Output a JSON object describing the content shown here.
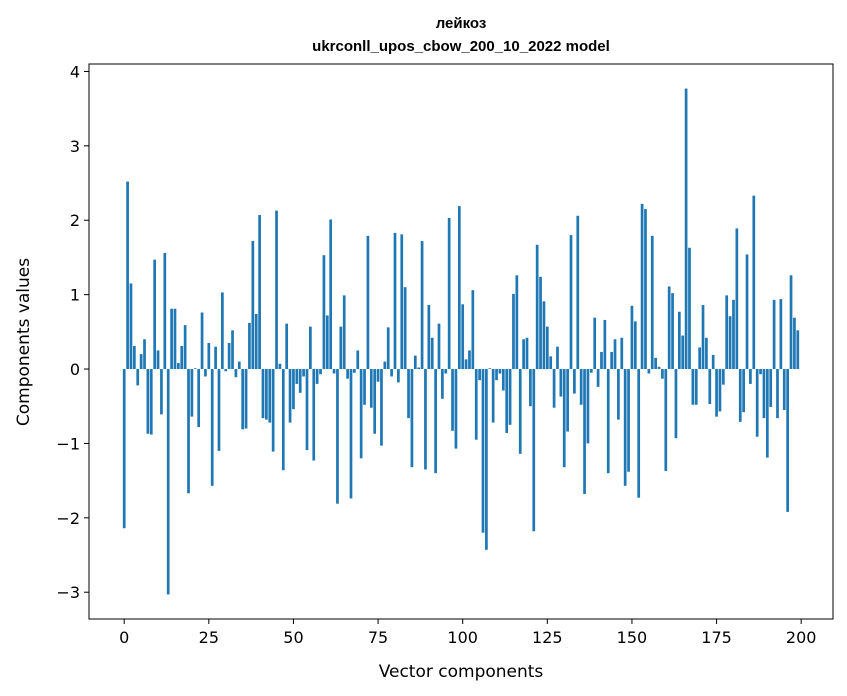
{
  "chart_data": {
    "type": "bar",
    "title": "лейкоз",
    "subtitle": "ukrconll_upos_cbow_200_10_2022 model",
    "xlabel": "Vector components",
    "ylabel": "Components values",
    "xlim": [
      -10.4,
      209.4
    ],
    "ylim": [
      -3.36,
      4.1
    ],
    "xticks": [
      0,
      25,
      50,
      75,
      100,
      125,
      150,
      175,
      200
    ],
    "xtick_labels": [
      "0",
      "25",
      "50",
      "75",
      "100",
      "125",
      "150",
      "175",
      "200"
    ],
    "yticks": [
      -3,
      -2,
      -1,
      0,
      1,
      2,
      3,
      4
    ],
    "ytick_labels": [
      "−3",
      "−2",
      "−1",
      "0",
      "1",
      "2",
      "3",
      "4"
    ],
    "grid": false,
    "bar_color": "#1f77b4",
    "values": [
      -2.14,
      2.52,
      1.15,
      0.31,
      -0.22,
      0.2,
      0.4,
      -0.87,
      -0.88,
      1.47,
      0.25,
      -0.61,
      1.56,
      -3.03,
      0.81,
      0.81,
      0.08,
      0.31,
      0.59,
      -1.67,
      -0.64,
      0.01,
      -0.78,
      0.76,
      -0.1,
      0.35,
      -1.57,
      0.3,
      -1.1,
      1.03,
      -0.03,
      0.35,
      0.52,
      -0.11,
      0.1,
      -0.81,
      -0.8,
      0.62,
      1.72,
      0.74,
      2.07,
      -0.66,
      -0.68,
      -0.72,
      -1.11,
      2.13,
      0.07,
      -1.36,
      0.61,
      -0.72,
      -0.54,
      -0.2,
      -0.32,
      -0.1,
      -1.09,
      0.57,
      -1.23,
      -0.2,
      -0.07,
      1.53,
      0.72,
      2.01,
      -0.06,
      -1.81,
      0.57,
      0.99,
      -0.13,
      -1.74,
      -0.05,
      0.25,
      -1.2,
      -0.48,
      1.79,
      -0.52,
      -0.87,
      -0.17,
      -1.03,
      0.1,
      0.56,
      -0.1,
      1.83,
      -0.18,
      1.81,
      1.1,
      -0.66,
      -1.32,
      0.18,
      0.02,
      1.72,
      -1.35,
      0.86,
      0.42,
      -1.4,
      0.61,
      -0.4,
      -0.06,
      2.03,
      -0.83,
      -1.07,
      2.19,
      0.87,
      0.13,
      0.25,
      1.06,
      -0.95,
      -0.15,
      -2.2,
      -2.43,
      0.01,
      -0.72,
      -0.15,
      -0.06,
      -0.29,
      -0.86,
      -0.75,
      1.01,
      1.26,
      -1.14,
      0.4,
      0.42,
      -0.5,
      -2.18,
      1.67,
      1.24,
      0.91,
      0.57,
      0.17,
      -0.52,
      0.3,
      -0.37,
      -1.32,
      -0.84,
      1.8,
      -0.33,
      2.06,
      -0.48,
      -1.68,
      -1.0,
      -0.05,
      0.69,
      -0.24,
      0.23,
      0.66,
      -1.4,
      0.23,
      0.4,
      -0.68,
      0.42,
      -1.57,
      -1.38,
      0.85,
      0.64,
      -1.73,
      2.22,
      2.15,
      -0.06,
      1.79,
      0.15,
      0.03,
      -0.13,
      -1.37,
      1.11,
      1.02,
      -0.93,
      0.77,
      0.45,
      3.77,
      1.63,
      -0.48,
      -0.48,
      0.29,
      0.86,
      0.42,
      -0.47,
      0.19,
      -0.64,
      -0.57,
      -0.21,
      0.99,
      0.71,
      0.93,
      1.89,
      -0.71,
      -0.58,
      1.54,
      -0.2,
      2.33,
      -0.91,
      -0.07,
      -0.66,
      -1.19,
      -0.51,
      0.93,
      -0.66,
      0.94,
      -0.55,
      -1.92,
      1.26,
      0.69,
      0.52
    ]
  }
}
